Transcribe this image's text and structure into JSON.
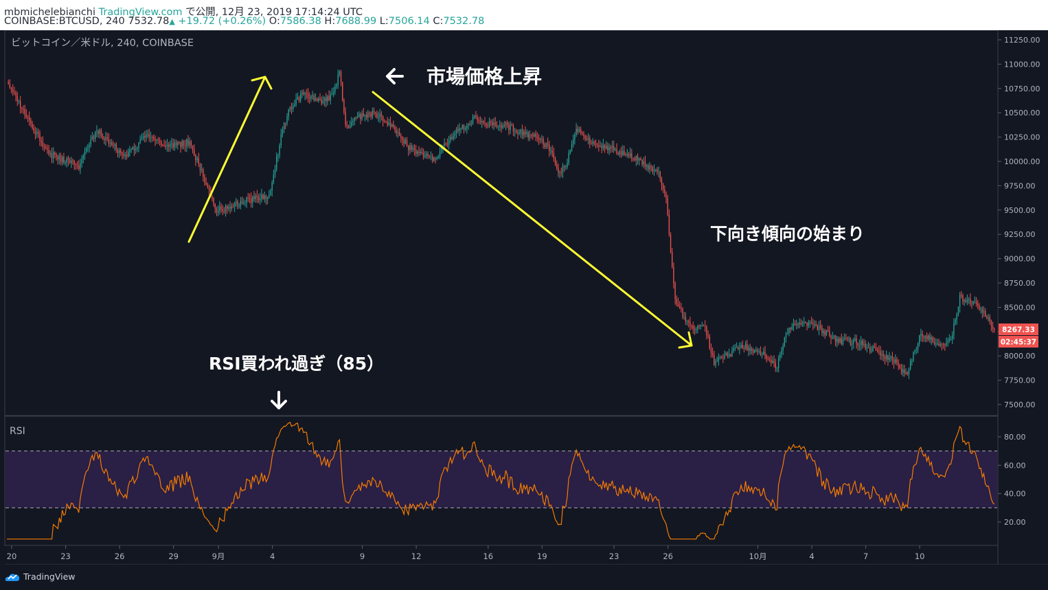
{
  "header": {
    "author": "mbmichelebianchi",
    "site": "TradingView.com",
    "published": "で公開, 12月 23, 2019 17:14:24 UTC",
    "symbol_line": "COINBASE:BTCUSD, 240 7532.78",
    "change": "+19.72 (+0.26%)",
    "ohlc": {
      "o_label": "O:",
      "o": "7586.38",
      "h_label": "H:",
      "h": "7688.99",
      "l_label": "L:",
      "l": "7506.14",
      "c_label": "C:",
      "c": "7532.78"
    }
  },
  "chart_title": "ビットコイン／米ドル, 240, COINBASE",
  "rsi_title": "RSI",
  "annotations": {
    "rise": "市場価格上昇",
    "downtrend": "下向き傾向の始まり",
    "rsi_overbought": "RSI買われ過ぎ（85）"
  },
  "price_badge": {
    "value": "8267.33",
    "countdown": "02:45:37",
    "color": "#ef5350"
  },
  "footer": {
    "brand": "TradingView"
  },
  "colors": {
    "up": "#26a69a",
    "down": "#ef5350",
    "rsi_line": "#f57c00",
    "rsi_band": "#2a1f45",
    "arrow": "#ffff33",
    "background": "#131722"
  },
  "chart_data": [
    {
      "type": "candlestick",
      "title": "ビットコイン／米ドル, 240, COINBASE",
      "ylim": [
        7350,
        11400
      ],
      "price_ticks": [
        "11250.00",
        "11000.00",
        "10750.00",
        "10500.00",
        "10250.00",
        "10000.00",
        "9750.00",
        "9500.00",
        "9250.00",
        "9000.00",
        "8750.00",
        "8500.00",
        "8250.00",
        "8000.00",
        "7750.00",
        "7500.00"
      ],
      "x_ticks": [
        "20",
        "23",
        "26",
        "29",
        "9月",
        "4",
        "9",
        "12",
        "16",
        "19",
        "23",
        "26",
        "10月",
        "4",
        "7",
        "10"
      ],
      "anchors": [
        [
          0,
          10800
        ],
        [
          12,
          10500
        ],
        [
          28,
          10080
        ],
        [
          48,
          9950
        ],
        [
          60,
          10330
        ],
        [
          78,
          10050
        ],
        [
          95,
          10280
        ],
        [
          108,
          10150
        ],
        [
          122,
          10200
        ],
        [
          135,
          9700
        ],
        [
          140,
          9500
        ],
        [
          148,
          9520
        ],
        [
          160,
          9600
        ],
        [
          175,
          9650
        ],
        [
          183,
          10250
        ],
        [
          188,
          10530
        ],
        [
          198,
          10700
        ],
        [
          210,
          10600
        ],
        [
          218,
          10700
        ],
        [
          222,
          10920
        ],
        [
          226,
          10350
        ],
        [
          234,
          10460
        ],
        [
          245,
          10500
        ],
        [
          255,
          10400
        ],
        [
          268,
          10150
        ],
        [
          285,
          10020
        ],
        [
          298,
          10270
        ],
        [
          312,
          10450
        ],
        [
          322,
          10380
        ],
        [
          333,
          10370
        ],
        [
          345,
          10280
        ],
        [
          355,
          10250
        ],
        [
          363,
          10100
        ],
        [
          368,
          9850
        ],
        [
          374,
          10000
        ],
        [
          380,
          10330
        ],
        [
          392,
          10180
        ],
        [
          405,
          10120
        ],
        [
          418,
          10050
        ],
        [
          428,
          9950
        ],
        [
          436,
          9850
        ],
        [
          440,
          9620
        ],
        [
          446,
          8580
        ],
        [
          452,
          8400
        ],
        [
          458,
          8300
        ],
        [
          466,
          8300
        ],
        [
          472,
          7920
        ],
        [
          485,
          8050
        ],
        [
          492,
          8100
        ],
        [
          506,
          8000
        ],
        [
          514,
          7880
        ],
        [
          520,
          8250
        ],
        [
          530,
          8350
        ],
        [
          540,
          8300
        ],
        [
          555,
          8150
        ],
        [
          566,
          8150
        ],
        [
          580,
          8050
        ],
        [
          592,
          7950
        ],
        [
          600,
          7800
        ],
        [
          610,
          8220
        ],
        [
          622,
          8130
        ],
        [
          630,
          8150
        ],
        [
          636,
          8600
        ],
        [
          648,
          8520
        ],
        [
          655,
          8400
        ],
        [
          658,
          8270
        ]
      ],
      "rsi": {
        "levels": [
          70,
          30
        ],
        "ticks": [
          "80.00",
          "60.00",
          "40.00",
          "20.00"
        ],
        "ylim": [
          5,
          95
        ]
      }
    }
  ]
}
